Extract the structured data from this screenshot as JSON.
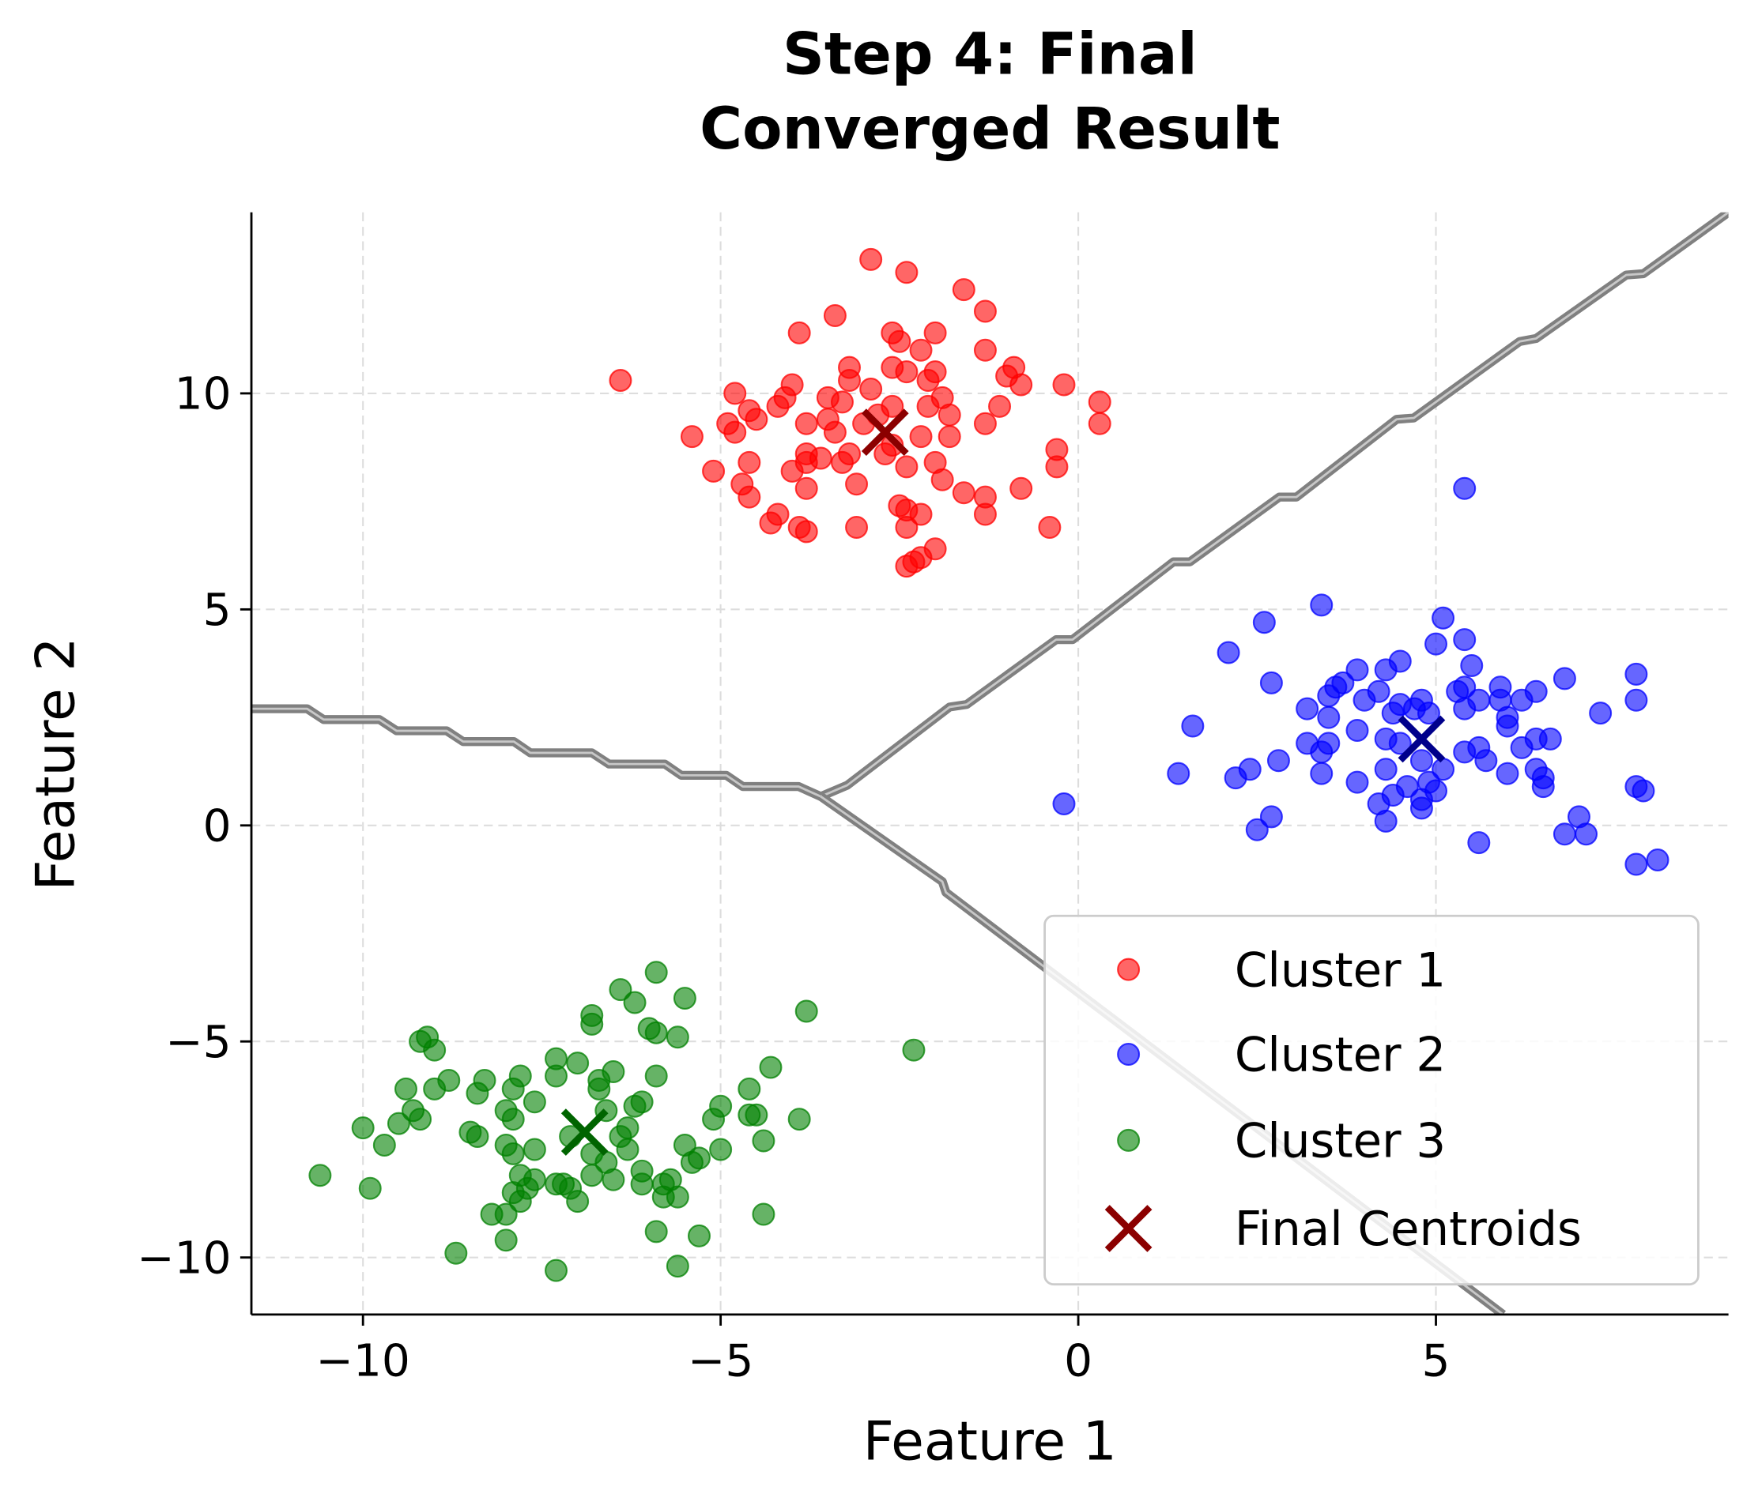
{
  "chart_data": {
    "type": "scatter",
    "title": [
      "Step 4: Final",
      "Converged Result"
    ],
    "xlabel": "Feature 1",
    "ylabel": "Feature 2",
    "xlim": [
      -11.56,
      9.09
    ],
    "ylim": [
      -11.32,
      14.19
    ],
    "grid": true,
    "legend_placement": "lower-right",
    "xticks": [
      {
        "value": -10,
        "label": "−10"
      },
      {
        "value": -5,
        "label": "−5"
      },
      {
        "value": 0,
        "label": "0"
      },
      {
        "value": 5,
        "label": "5"
      }
    ],
    "yticks": [
      {
        "value": -10,
        "label": "−10"
      },
      {
        "value": -5,
        "label": "−5"
      },
      {
        "value": 0,
        "label": "0"
      },
      {
        "value": 5,
        "label": "5"
      },
      {
        "value": 10,
        "label": "10"
      }
    ],
    "series": [
      {
        "name": "Cluster 1",
        "color": "#ff0000",
        "alpha": 0.6,
        "points": [
          [
            -2.9,
            13.1
          ],
          [
            -2.4,
            12.8
          ],
          [
            -1.6,
            12.4
          ],
          [
            -1.3,
            11.9
          ],
          [
            -3.4,
            11.8
          ],
          [
            -3.9,
            11.4
          ],
          [
            -2.6,
            11.4
          ],
          [
            -2.0,
            11.4
          ],
          [
            -2.5,
            11.2
          ],
          [
            -1.3,
            11.0
          ],
          [
            -2.2,
            11.0
          ],
          [
            -3.2,
            10.6
          ],
          [
            -0.9,
            10.6
          ],
          [
            -2.6,
            10.6
          ],
          [
            -2.0,
            10.5
          ],
          [
            -1.0,
            10.4
          ],
          [
            -6.4,
            10.3
          ],
          [
            -0.2,
            10.2
          ],
          [
            -3.2,
            10.3
          ],
          [
            -2.4,
            10.5
          ],
          [
            -4.0,
            10.2
          ],
          [
            -4.8,
            10.0
          ],
          [
            -0.8,
            10.2
          ],
          [
            -2.9,
            10.1
          ],
          [
            -2.1,
            10.3
          ],
          [
            -3.5,
            9.9
          ],
          [
            -4.1,
            9.9
          ],
          [
            -3.3,
            9.8
          ],
          [
            0.3,
            9.8
          ],
          [
            -4.2,
            9.7
          ],
          [
            -4.6,
            9.6
          ],
          [
            -2.1,
            9.7
          ],
          [
            -1.1,
            9.7
          ],
          [
            -1.9,
            9.9
          ],
          [
            -2.6,
            9.7
          ],
          [
            -2.8,
            9.5
          ],
          [
            -4.9,
            9.3
          ],
          [
            -4.5,
            9.4
          ],
          [
            -1.8,
            9.5
          ],
          [
            -1.3,
            9.3
          ],
          [
            0.3,
            9.3
          ],
          [
            -3.5,
            9.4
          ],
          [
            -3.8,
            9.3
          ],
          [
            -3.0,
            9.3
          ],
          [
            -4.8,
            9.1
          ],
          [
            -5.4,
            9.0
          ],
          [
            -3.4,
            9.1
          ],
          [
            -2.2,
            9.0
          ],
          [
            -1.8,
            9.0
          ],
          [
            -2.6,
            8.8
          ],
          [
            -0.3,
            8.7
          ],
          [
            -3.8,
            8.6
          ],
          [
            -3.2,
            8.6
          ],
          [
            -3.6,
            8.5
          ],
          [
            -2.7,
            8.6
          ],
          [
            -4.6,
            8.4
          ],
          [
            -2.0,
            8.4
          ],
          [
            -3.8,
            8.4
          ],
          [
            -0.3,
            8.3
          ],
          [
            -5.1,
            8.2
          ],
          [
            -3.3,
            8.4
          ],
          [
            -2.4,
            8.3
          ],
          [
            -4.0,
            8.2
          ],
          [
            -1.9,
            8.0
          ],
          [
            -4.7,
            7.9
          ],
          [
            -3.1,
            7.9
          ],
          [
            -0.8,
            7.8
          ],
          [
            -3.8,
            7.8
          ],
          [
            -1.6,
            7.7
          ],
          [
            -1.3,
            7.6
          ],
          [
            -4.6,
            7.6
          ],
          [
            -2.5,
            7.4
          ],
          [
            -2.4,
            7.3
          ],
          [
            -4.2,
            7.2
          ],
          [
            -2.2,
            7.2
          ],
          [
            -1.3,
            7.2
          ],
          [
            -4.3,
            7.0
          ],
          [
            -0.4,
            6.9
          ],
          [
            -3.9,
            6.9
          ],
          [
            -2.4,
            6.9
          ],
          [
            -3.1,
            6.9
          ],
          [
            -3.8,
            6.8
          ],
          [
            -2.0,
            6.4
          ],
          [
            -2.2,
            6.2
          ],
          [
            -2.4,
            6.0
          ],
          [
            -2.3,
            6.1
          ]
        ]
      },
      {
        "name": "Cluster 2",
        "color": "#0000ff",
        "alpha": 0.6,
        "points": [
          [
            5.4,
            7.8
          ],
          [
            3.4,
            5.1
          ],
          [
            5.1,
            4.8
          ],
          [
            2.6,
            4.7
          ],
          [
            5.4,
            4.3
          ],
          [
            5.0,
            4.2
          ],
          [
            2.1,
            4.0
          ],
          [
            4.5,
            3.8
          ],
          [
            4.3,
            3.6
          ],
          [
            5.5,
            3.7
          ],
          [
            3.9,
            3.6
          ],
          [
            7.8,
            3.5
          ],
          [
            6.8,
            3.4
          ],
          [
            2.7,
            3.3
          ],
          [
            3.7,
            3.3
          ],
          [
            3.6,
            3.2
          ],
          [
            5.9,
            3.2
          ],
          [
            6.4,
            3.1
          ],
          [
            5.4,
            3.2
          ],
          [
            4.2,
            3.1
          ],
          [
            3.5,
            3.0
          ],
          [
            5.3,
            3.1
          ],
          [
            7.8,
            2.9
          ],
          [
            5.6,
            2.9
          ],
          [
            6.2,
            2.9
          ],
          [
            4.0,
            2.9
          ],
          [
            4.8,
            2.9
          ],
          [
            5.9,
            2.9
          ],
          [
            4.5,
            2.8
          ],
          [
            4.7,
            2.7
          ],
          [
            5.4,
            2.7
          ],
          [
            3.2,
            2.7
          ],
          [
            7.3,
            2.6
          ],
          [
            4.4,
            2.6
          ],
          [
            3.5,
            2.5
          ],
          [
            4.9,
            2.6
          ],
          [
            6.0,
            2.5
          ],
          [
            1.6,
            2.3
          ],
          [
            3.9,
            2.2
          ],
          [
            6.0,
            2.3
          ],
          [
            6.4,
            2.0
          ],
          [
            6.6,
            2.0
          ],
          [
            3.2,
            1.9
          ],
          [
            3.5,
            1.9
          ],
          [
            4.5,
            1.9
          ],
          [
            4.3,
            2.0
          ],
          [
            5.6,
            1.8
          ],
          [
            6.2,
            1.8
          ],
          [
            3.4,
            1.7
          ],
          [
            2.8,
            1.5
          ],
          [
            5.4,
            1.7
          ],
          [
            5.7,
            1.5
          ],
          [
            4.8,
            1.5
          ],
          [
            2.4,
            1.3
          ],
          [
            4.3,
            1.3
          ],
          [
            6.4,
            1.3
          ],
          [
            5.1,
            1.3
          ],
          [
            1.4,
            1.2
          ],
          [
            3.4,
            1.2
          ],
          [
            6.5,
            1.1
          ],
          [
            6.0,
            1.2
          ],
          [
            2.2,
            1.1
          ],
          [
            3.9,
            1.0
          ],
          [
            4.9,
            1.0
          ],
          [
            4.6,
            0.9
          ],
          [
            6.5,
            0.9
          ],
          [
            7.8,
            0.9
          ],
          [
            7.9,
            0.8
          ],
          [
            5.0,
            0.8
          ],
          [
            4.4,
            0.7
          ],
          [
            4.8,
            0.6
          ],
          [
            -0.2,
            0.5
          ],
          [
            4.2,
            0.5
          ],
          [
            4.8,
            0.4
          ],
          [
            2.7,
            0.2
          ],
          [
            7.0,
            0.2
          ],
          [
            4.3,
            0.1
          ],
          [
            2.5,
            -0.1
          ],
          [
            6.8,
            -0.2
          ],
          [
            7.1,
            -0.2
          ],
          [
            5.6,
            -0.4
          ],
          [
            8.1,
            -0.8
          ],
          [
            7.8,
            -0.9
          ]
        ]
      },
      {
        "name": "Cluster 3",
        "color": "#008000",
        "alpha": 0.6,
        "points": [
          [
            -5.9,
            -3.4
          ],
          [
            -5.5,
            -4.0
          ],
          [
            -6.4,
            -3.8
          ],
          [
            -3.8,
            -4.3
          ],
          [
            -6.2,
            -4.1
          ],
          [
            -6.8,
            -4.4
          ],
          [
            -6.8,
            -4.6
          ],
          [
            -6.0,
            -4.7
          ],
          [
            -5.6,
            -4.9
          ],
          [
            -5.9,
            -4.8
          ],
          [
            -9.1,
            -4.9
          ],
          [
            -9.2,
            -5.0
          ],
          [
            -9.0,
            -5.2
          ],
          [
            -2.3,
            -5.2
          ],
          [
            -7.3,
            -5.4
          ],
          [
            -7.0,
            -5.5
          ],
          [
            -4.3,
            -5.6
          ],
          [
            -6.5,
            -5.7
          ],
          [
            -7.8,
            -5.8
          ],
          [
            -5.9,
            -5.8
          ],
          [
            -7.3,
            -5.8
          ],
          [
            -8.8,
            -5.9
          ],
          [
            -8.3,
            -5.9
          ],
          [
            -6.7,
            -5.9
          ],
          [
            -9.4,
            -6.1
          ],
          [
            -9.0,
            -6.1
          ],
          [
            -7.9,
            -6.1
          ],
          [
            -4.6,
            -6.1
          ],
          [
            -8.4,
            -6.2
          ],
          [
            -6.7,
            -6.1
          ],
          [
            -7.6,
            -6.4
          ],
          [
            -6.1,
            -6.4
          ],
          [
            -6.2,
            -6.5
          ],
          [
            -9.3,
            -6.6
          ],
          [
            -5.0,
            -6.5
          ],
          [
            -8.0,
            -6.6
          ],
          [
            -5.1,
            -6.8
          ],
          [
            -9.2,
            -6.8
          ],
          [
            -6.6,
            -6.6
          ],
          [
            -4.6,
            -6.7
          ],
          [
            -4.5,
            -6.7
          ],
          [
            -3.9,
            -6.8
          ],
          [
            -7.9,
            -6.8
          ],
          [
            -9.5,
            -6.9
          ],
          [
            -6.3,
            -7.0
          ],
          [
            -10.0,
            -7.0
          ],
          [
            -8.5,
            -7.1
          ],
          [
            -8.4,
            -7.2
          ],
          [
            -6.4,
            -7.2
          ],
          [
            -4.4,
            -7.3
          ],
          [
            -7.1,
            -7.2
          ],
          [
            -5.5,
            -7.4
          ],
          [
            -9.7,
            -7.4
          ],
          [
            -8.0,
            -7.4
          ],
          [
            -5.0,
            -7.5
          ],
          [
            -6.3,
            -7.5
          ],
          [
            -7.6,
            -7.5
          ],
          [
            -7.9,
            -7.6
          ],
          [
            -5.3,
            -7.7
          ],
          [
            -6.8,
            -7.6
          ],
          [
            -5.4,
            -7.8
          ],
          [
            -6.6,
            -7.8
          ],
          [
            -6.1,
            -8.0
          ],
          [
            -10.6,
            -8.1
          ],
          [
            -7.8,
            -8.1
          ],
          [
            -6.8,
            -8.1
          ],
          [
            -5.7,
            -8.2
          ],
          [
            -7.6,
            -8.2
          ],
          [
            -6.5,
            -8.2
          ],
          [
            -6.1,
            -8.3
          ],
          [
            -7.3,
            -8.3
          ],
          [
            -7.2,
            -8.3
          ],
          [
            -5.8,
            -8.3
          ],
          [
            -9.9,
            -8.4
          ],
          [
            -7.7,
            -8.4
          ],
          [
            -7.1,
            -8.4
          ],
          [
            -7.9,
            -8.5
          ],
          [
            -5.6,
            -8.6
          ],
          [
            -5.8,
            -8.6
          ],
          [
            -7.8,
            -8.7
          ],
          [
            -7.0,
            -8.7
          ],
          [
            -8.2,
            -9.0
          ],
          [
            -4.4,
            -9.0
          ],
          [
            -8.0,
            -9.0
          ],
          [
            -5.9,
            -9.4
          ],
          [
            -5.3,
            -9.5
          ],
          [
            -8.0,
            -9.6
          ],
          [
            -8.7,
            -9.9
          ],
          [
            -5.6,
            -10.2
          ],
          [
            -7.3,
            -10.3
          ]
        ]
      }
    ],
    "centroids": {
      "name": "Final Centroids",
      "legend_color": "#8b0000",
      "points": [
        {
          "x": -2.7,
          "y": 9.1,
          "color": "#8b0000"
        },
        {
          "x": 4.8,
          "y": 2.0,
          "color": "#00008b"
        },
        {
          "x": -6.9,
          "y": -7.1,
          "color": "#006400"
        }
      ]
    },
    "decision_boundaries": {
      "color": "#808080",
      "lines": [
        [
          [
            -11.56,
            2.7
          ],
          [
            -10.78,
            2.7
          ],
          [
            -10.55,
            2.45
          ],
          [
            -9.77,
            2.45
          ],
          [
            -9.53,
            2.19
          ],
          [
            -8.83,
            2.19
          ],
          [
            -8.6,
            1.94
          ],
          [
            -7.89,
            1.94
          ],
          [
            -7.66,
            1.68
          ],
          [
            -6.8,
            1.68
          ],
          [
            -6.56,
            1.42
          ],
          [
            -5.78,
            1.42
          ],
          [
            -5.55,
            1.16
          ],
          [
            -4.92,
            1.16
          ],
          [
            -4.69,
            0.9
          ],
          [
            -3.91,
            0.9
          ],
          [
            -3.6,
            0.67
          ]
        ],
        [
          [
            -3.6,
            0.67
          ],
          [
            -3.23,
            0.93
          ],
          [
            -1.8,
            2.74
          ],
          [
            -1.56,
            2.8
          ],
          [
            -0.31,
            4.3
          ],
          [
            -0.08,
            4.3
          ],
          [
            1.33,
            6.1
          ],
          [
            1.56,
            6.1
          ],
          [
            2.81,
            7.6
          ],
          [
            3.05,
            7.6
          ],
          [
            4.45,
            9.4
          ],
          [
            4.69,
            9.43
          ],
          [
            6.17,
            11.2
          ],
          [
            6.4,
            11.27
          ],
          [
            7.66,
            12.74
          ],
          [
            7.9,
            12.77
          ],
          [
            9.09,
            14.19
          ]
        ],
        [
          [
            -3.6,
            0.67
          ],
          [
            -1.9,
            -1.3
          ],
          [
            -1.85,
            -1.55
          ],
          [
            5.94,
            -11.32
          ]
        ]
      ]
    }
  }
}
